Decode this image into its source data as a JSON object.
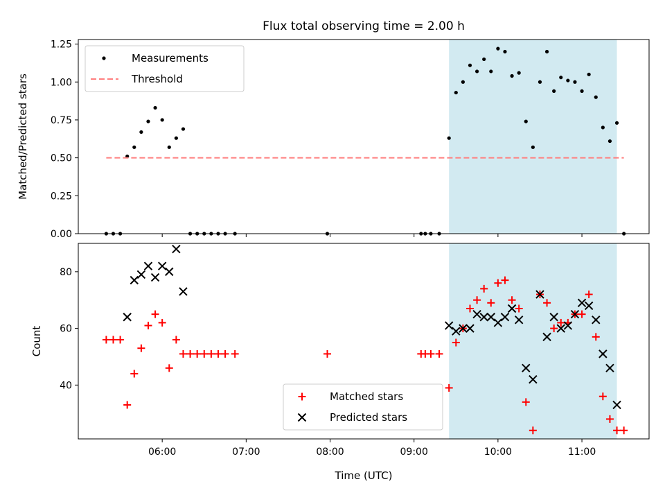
{
  "figure": {
    "title": "Flux total observing time = 2.00 h"
  },
  "chart_data": [
    {
      "type": "scatter",
      "title": "Flux total observing time = 2.00 h",
      "xlabel": "",
      "ylabel": "Matched/Predicted stars",
      "xlim": [
        "05:00",
        "11:48"
      ],
      "ylim": [
        0,
        1.28
      ],
      "xticks": [
        "06:00",
        "07:00",
        "08:00",
        "09:00",
        "10:00",
        "11:00"
      ],
      "yticks": [
        "0.00",
        "0.25",
        "0.50",
        "0.75",
        "1.00",
        "1.25"
      ],
      "highlight_span": {
        "start": "09:25",
        "end": "11:25",
        "color": "#add8e6"
      },
      "legend": {
        "position": "top-left",
        "entries": [
          "Measurements",
          "Threshold"
        ]
      },
      "series": [
        {
          "name": "Measurements",
          "marker": "dot",
          "color": "#000000",
          "points": [
            [
              "05:20",
              0
            ],
            [
              "05:25",
              0
            ],
            [
              "05:30",
              0
            ],
            [
              "05:35",
              0.51
            ],
            [
              "05:40",
              0.57
            ],
            [
              "05:45",
              0.67
            ],
            [
              "05:50",
              0.74
            ],
            [
              "05:55",
              0.83
            ],
            [
              "06:00",
              0.75
            ],
            [
              "06:05",
              0.57
            ],
            [
              "06:10",
              0.63
            ],
            [
              "06:15",
              0.69
            ],
            [
              "06:20",
              0
            ],
            [
              "06:25",
              0
            ],
            [
              "06:30",
              0
            ],
            [
              "06:35",
              0
            ],
            [
              "06:40",
              0
            ],
            [
              "06:45",
              0
            ],
            [
              "06:52",
              0
            ],
            [
              "07:58",
              0
            ],
            [
              "09:05",
              0
            ],
            [
              "09:08",
              0
            ],
            [
              "09:12",
              0
            ],
            [
              "09:18",
              0
            ],
            [
              "09:25",
              0.63
            ],
            [
              "09:30",
              0.93
            ],
            [
              "09:35",
              1.0
            ],
            [
              "09:40",
              1.11
            ],
            [
              "09:45",
              1.07
            ],
            [
              "09:50",
              1.15
            ],
            [
              "09:55",
              1.07
            ],
            [
              "10:00",
              1.22
            ],
            [
              "10:05",
              1.2
            ],
            [
              "10:10",
              1.04
            ],
            [
              "10:15",
              1.06
            ],
            [
              "10:20",
              0.74
            ],
            [
              "10:25",
              0.57
            ],
            [
              "10:30",
              1.0
            ],
            [
              "10:35",
              1.2
            ],
            [
              "10:40",
              0.94
            ],
            [
              "10:45",
              1.03
            ],
            [
              "10:50",
              1.01
            ],
            [
              "10:55",
              1.0
            ],
            [
              "11:00",
              0.94
            ],
            [
              "11:05",
              1.05
            ],
            [
              "11:10",
              0.9
            ],
            [
              "11:15",
              0.7
            ],
            [
              "11:20",
              0.61
            ],
            [
              "11:25",
              0.73
            ],
            [
              "11:30",
              0
            ]
          ]
        },
        {
          "name": "Threshold",
          "type": "line",
          "style": "dashed",
          "color": "#ff7f7f",
          "points": [
            [
              "05:20",
              0.5
            ],
            [
              "11:30",
              0.5
            ]
          ]
        }
      ]
    },
    {
      "type": "scatter",
      "title": "",
      "xlabel": "Time (UTC)",
      "ylabel": "Count",
      "xlim": [
        "05:00",
        "11:48"
      ],
      "ylim": [
        21,
        90
      ],
      "xticks": [
        "06:00",
        "07:00",
        "08:00",
        "09:00",
        "10:00",
        "11:00"
      ],
      "yticks": [
        "40",
        "60",
        "80"
      ],
      "highlight_span": {
        "start": "09:25",
        "end": "11:25",
        "color": "#add8e6"
      },
      "legend": {
        "position": "bottom-center",
        "entries": [
          "Matched stars",
          "Predicted stars"
        ]
      },
      "series": [
        {
          "name": "Matched stars",
          "marker": "plus",
          "color": "#ff0000",
          "points": [
            [
              "05:20",
              56
            ],
            [
              "05:25",
              56
            ],
            [
              "05:30",
              56
            ],
            [
              "05:35",
              33
            ],
            [
              "05:40",
              44
            ],
            [
              "05:45",
              53
            ],
            [
              "05:50",
              61
            ],
            [
              "05:55",
              65
            ],
            [
              "06:00",
              62
            ],
            [
              "06:05",
              46
            ],
            [
              "06:10",
              56
            ],
            [
              "06:15",
              51
            ],
            [
              "06:20",
              51
            ],
            [
              "06:25",
              51
            ],
            [
              "06:30",
              51
            ],
            [
              "06:35",
              51
            ],
            [
              "06:40",
              51
            ],
            [
              "06:45",
              51
            ],
            [
              "06:52",
              51
            ],
            [
              "07:58",
              51
            ],
            [
              "09:05",
              51
            ],
            [
              "09:08",
              51
            ],
            [
              "09:12",
              51
            ],
            [
              "09:18",
              51
            ],
            [
              "09:25",
              39
            ],
            [
              "09:30",
              55
            ],
            [
              "09:35",
              60
            ],
            [
              "09:40",
              67
            ],
            [
              "09:45",
              70
            ],
            [
              "09:50",
              74
            ],
            [
              "09:55",
              69
            ],
            [
              "10:00",
              76
            ],
            [
              "10:05",
              77
            ],
            [
              "10:10",
              70
            ],
            [
              "10:15",
              67
            ],
            [
              "10:20",
              34
            ],
            [
              "10:25",
              24
            ],
            [
              "10:30",
              72
            ],
            [
              "10:35",
              69
            ],
            [
              "10:40",
              60
            ],
            [
              "10:45",
              62
            ],
            [
              "10:50",
              62
            ],
            [
              "10:55",
              65
            ],
            [
              "11:00",
              65
            ],
            [
              "11:05",
              72
            ],
            [
              "11:10",
              57
            ],
            [
              "11:15",
              36
            ],
            [
              "11:20",
              28
            ],
            [
              "11:25",
              24
            ],
            [
              "11:30",
              24
            ]
          ]
        },
        {
          "name": "Predicted stars",
          "marker": "x",
          "color": "#000000",
          "points": [
            [
              "05:35",
              64
            ],
            [
              "05:40",
              77
            ],
            [
              "05:45",
              79
            ],
            [
              "05:50",
              82
            ],
            [
              "05:55",
              78
            ],
            [
              "06:00",
              82
            ],
            [
              "06:05",
              80
            ],
            [
              "06:10",
              88
            ],
            [
              "06:15",
              73
            ],
            [
              "09:25",
              61
            ],
            [
              "09:30",
              59
            ],
            [
              "09:35",
              60
            ],
            [
              "09:40",
              60
            ],
            [
              "09:45",
              65
            ],
            [
              "09:50",
              64
            ],
            [
              "09:55",
              64
            ],
            [
              "10:00",
              62
            ],
            [
              "10:05",
              64
            ],
            [
              "10:10",
              67
            ],
            [
              "10:15",
              63
            ],
            [
              "10:20",
              46
            ],
            [
              "10:25",
              42
            ],
            [
              "10:30",
              72
            ],
            [
              "10:35",
              57
            ],
            [
              "10:40",
              64
            ],
            [
              "10:45",
              60
            ],
            [
              "10:50",
              61
            ],
            [
              "10:55",
              65
            ],
            [
              "11:00",
              69
            ],
            [
              "11:05",
              68
            ],
            [
              "11:10",
              63
            ],
            [
              "11:15",
              51
            ],
            [
              "11:20",
              46
            ],
            [
              "11:25",
              33
            ]
          ]
        }
      ]
    }
  ]
}
